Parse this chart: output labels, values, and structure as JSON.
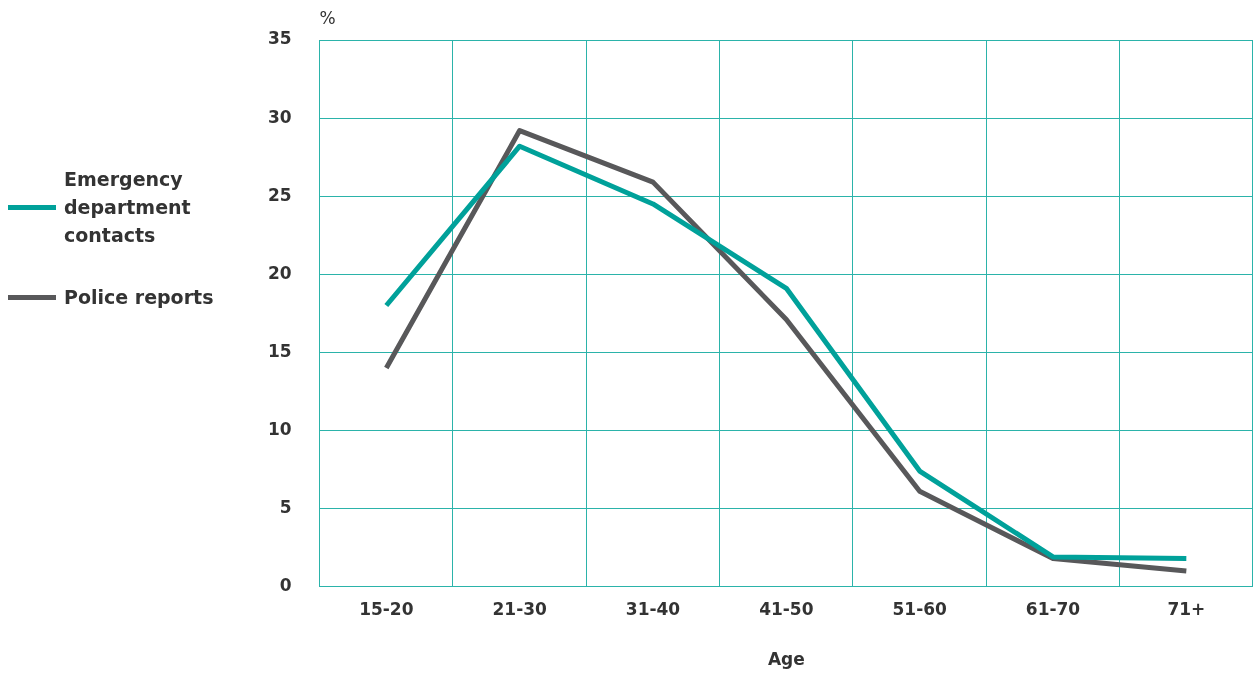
{
  "chart_data": {
    "type": "line",
    "xlabel": "Age",
    "ylabel": "%",
    "categories": [
      "15-20",
      "21-30",
      "31-40",
      "41-50",
      "51-60",
      "61-70",
      "71+"
    ],
    "series": [
      {
        "name": "Emergency department contacts",
        "color": "#00a19a",
        "values": [
          18,
          28.2,
          24.5,
          19.1,
          7.4,
          1.9,
          1.8
        ]
      },
      {
        "name": "Police reports",
        "color": "#58585a",
        "values": [
          14,
          29.2,
          25.9,
          17.1,
          6.1,
          1.8,
          1.0
        ]
      }
    ],
    "ylim": [
      0,
      35
    ],
    "yticks": [
      0,
      5,
      10,
      15,
      20,
      25,
      30,
      35
    ],
    "grid": true,
    "legend": "left",
    "marker": "none",
    "line_style": "solid"
  }
}
